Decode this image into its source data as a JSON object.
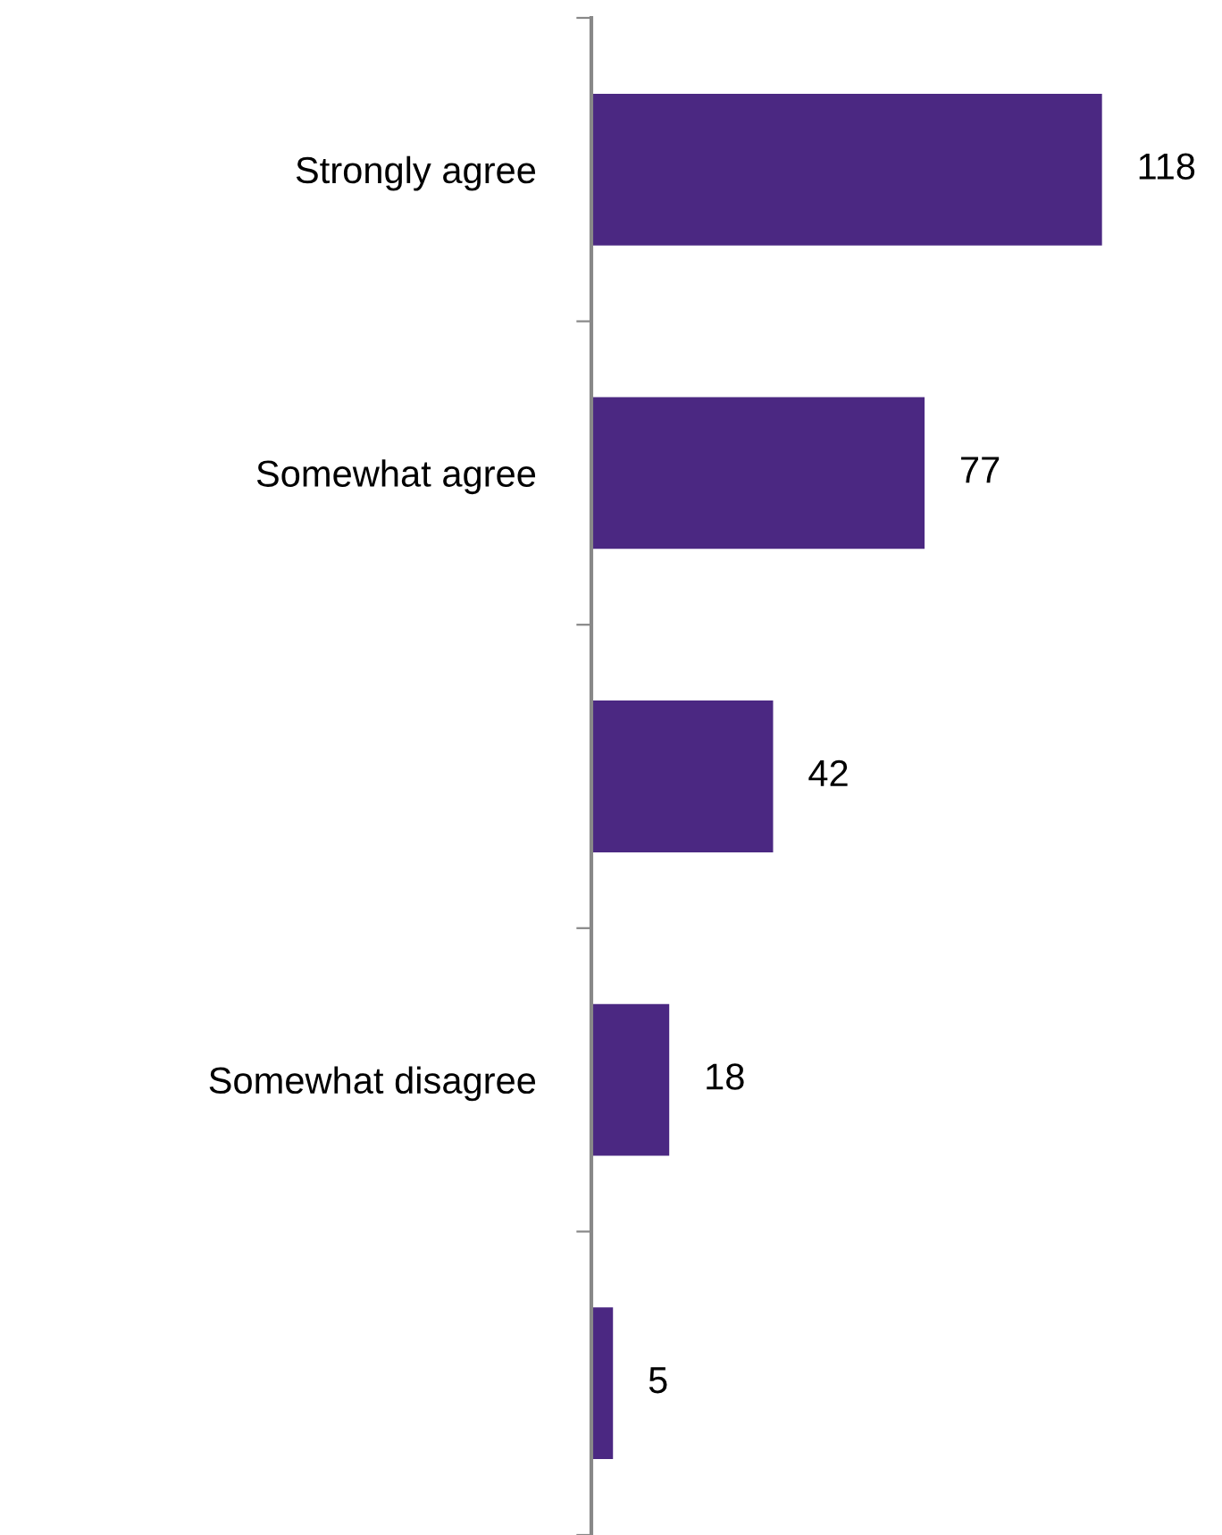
{
  "chart_data": {
    "type": "bar",
    "orientation": "horizontal",
    "categories": [
      "Strongly agree",
      "Somewhat agree",
      null,
      "Somewhat disagree",
      null
    ],
    "values": [
      118,
      77,
      42,
      18,
      5
    ],
    "color": "#4b2882",
    "data_labels": true
  }
}
